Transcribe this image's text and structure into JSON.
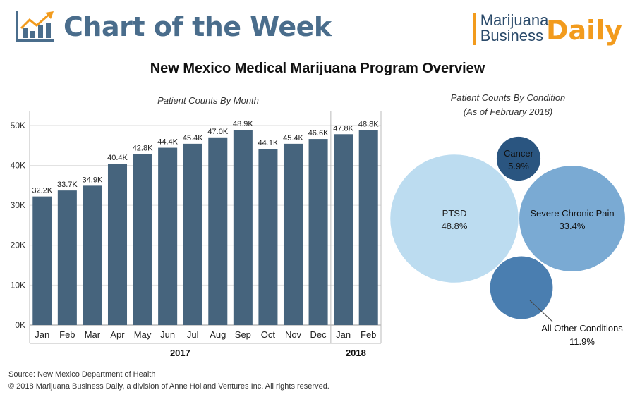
{
  "header": {
    "title": "Chart of the Week",
    "brand_line1": "Marijuana",
    "brand_line2": "Business",
    "brand_daily": "Daily",
    "logo_icon": "bar-chart-arrow-icon"
  },
  "main_title": "New Mexico Medical Marijuana Program Overview",
  "colors": {
    "bar": "#46647d",
    "accent": "#f29b1d",
    "title_blue": "#4a6d8c"
  },
  "chart_data": [
    {
      "type": "bar",
      "title": "Patient Counts By Month",
      "categories": [
        "Jan",
        "Feb",
        "Mar",
        "Apr",
        "May",
        "Jun",
        "Jul",
        "Aug",
        "Sep",
        "Oct",
        "Nov",
        "Dec",
        "Jan",
        "Feb"
      ],
      "groups": [
        {
          "label": "2017",
          "count": 12
        },
        {
          "label": "2018",
          "count": 2
        }
      ],
      "values": [
        32200,
        33700,
        34900,
        40400,
        42800,
        44400,
        45400,
        47000,
        48900,
        44100,
        45400,
        46600,
        47800,
        48800
      ],
      "value_labels": [
        "32.2K",
        "33.7K",
        "34.9K",
        "40.4K",
        "42.8K",
        "44.4K",
        "45.4K",
        "47.0K",
        "48.9K",
        "44.1K",
        "45.4K",
        "46.6K",
        "47.8K",
        "48.8K"
      ],
      "yticks": [
        0,
        10000,
        20000,
        30000,
        40000,
        50000
      ],
      "ytick_labels": [
        "0K",
        "10K",
        "20K",
        "30K",
        "40K",
        "50K"
      ],
      "ylim": [
        0,
        53500
      ],
      "grid": true
    },
    {
      "type": "bubble",
      "title": "Patient Counts By Condition",
      "subtitle": "(As of February 2018)",
      "items": [
        {
          "label": "PTSD",
          "value_label": "48.8%",
          "value": 48.8,
          "color": "#bcdcf0"
        },
        {
          "label": "Severe Chronic Pain",
          "value_label": "33.4%",
          "value": 33.4,
          "color": "#7aaad3"
        },
        {
          "label": "Cancer",
          "value_label": "5.9%",
          "value": 5.9,
          "color": "#2a5580"
        },
        {
          "label": "All Other Conditions",
          "value_label": "11.9%",
          "value": 11.9,
          "color": "#4a7eb0"
        }
      ]
    }
  ],
  "footer": {
    "source": "Source: New Mexico Department of Health",
    "copyright": "© 2018 Marijuana Business Daily, a division of Anne Holland Ventures Inc. All rights reserved."
  }
}
